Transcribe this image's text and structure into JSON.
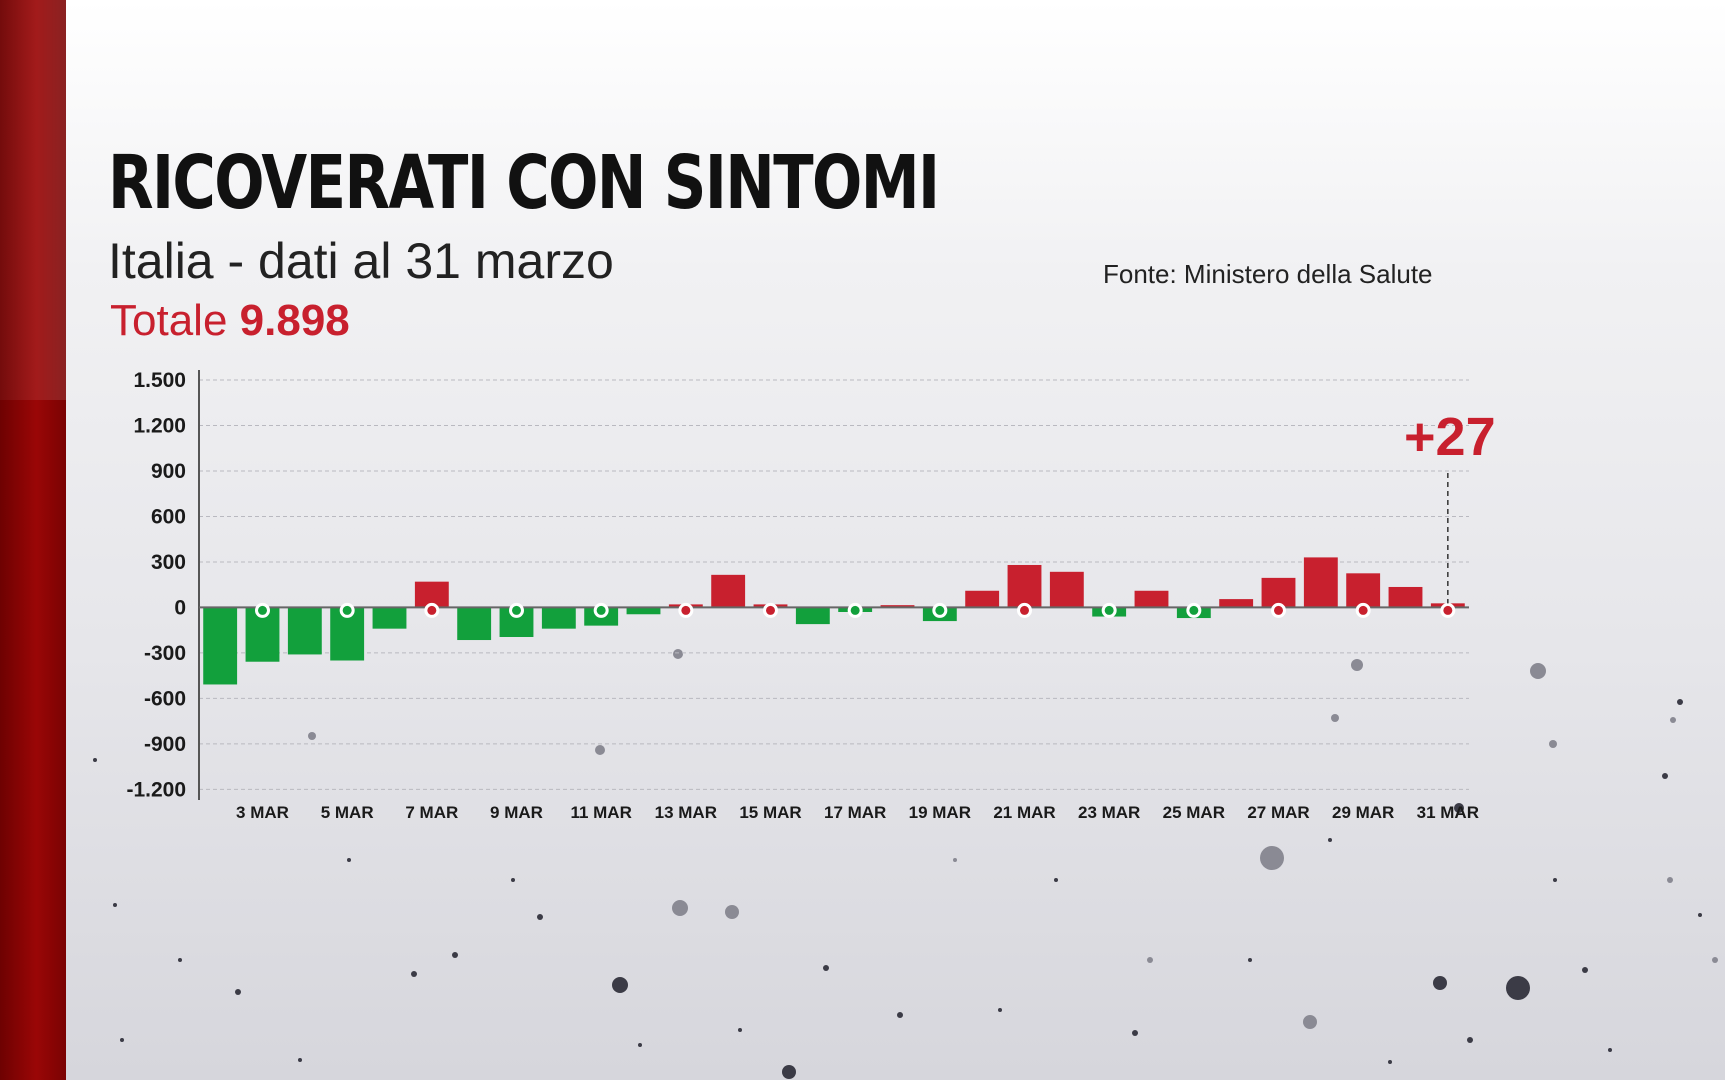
{
  "header": {
    "title": "RICOVERATI CON SINTOMI",
    "subtitle": "Italia - dati al 31 marzo",
    "total_label": "Totale",
    "total_value": "9.898",
    "source": "Fonte: Ministero della Salute"
  },
  "colors": {
    "positive": "#c8202e",
    "negative": "#12a03c",
    "side_bar": "#8b0000"
  },
  "chart_data": {
    "type": "bar",
    "title": "RICOVERATI CON SINTOMI",
    "subtitle": "Italia - dati al 31 marzo",
    "xlabel": "",
    "ylabel": "",
    "ylim": [
      -1270,
      1500
    ],
    "yticks": [
      1500,
      1200,
      900,
      600,
      300,
      0,
      -300,
      -600,
      -900,
      -1200
    ],
    "ytick_labels": [
      "1.500",
      "1.200",
      "900",
      "600",
      "300",
      "0",
      "-300",
      "-600",
      "-900",
      "-1.200"
    ],
    "grid": true,
    "categories": [
      "2 MAR",
      "3 MAR",
      "4 MAR",
      "5 MAR",
      "6 MAR",
      "7 MAR",
      "8 MAR",
      "9 MAR",
      "10 MAR",
      "11 MAR",
      "12 MAR",
      "13 MAR",
      "14 MAR",
      "15 MAR",
      "16 MAR",
      "17 MAR",
      "18 MAR",
      "19 MAR",
      "20 MAR",
      "21 MAR",
      "22 MAR",
      "23 MAR",
      "24 MAR",
      "25 MAR",
      "26 MAR",
      "27 MAR",
      "28 MAR",
      "29 MAR",
      "30 MAR",
      "31 MAR"
    ],
    "xtick_labels": [
      "",
      "3 MAR",
      "",
      "5 MAR",
      "",
      "7 MAR",
      "",
      "9 MAR",
      "",
      "11 MAR",
      "",
      "13 MAR",
      "",
      "15 MAR",
      "",
      "17 MAR",
      "",
      "19 MAR",
      "",
      "21 MAR",
      "",
      "23 MAR",
      "",
      "25 MAR",
      "",
      "27 MAR",
      "",
      "29 MAR",
      "",
      "31 MAR"
    ],
    "values": [
      -508,
      -358,
      -310,
      -350,
      -140,
      170,
      -215,
      -195,
      -140,
      -120,
      -45,
      20,
      215,
      20,
      -110,
      -30,
      15,
      -90,
      110,
      280,
      235,
      -60,
      110,
      -70,
      55,
      195,
      330,
      225,
      135,
      27
    ],
    "markers": [
      "",
      "-",
      "",
      "-",
      "",
      "-",
      "",
      "-",
      "",
      "-",
      "",
      "-",
      "",
      "-",
      "",
      "-",
      "",
      "-",
      "",
      "-",
      "",
      "-",
      "",
      "-",
      "",
      "-",
      "",
      "-",
      "",
      "-"
    ],
    "callout": {
      "category": "31 MAR",
      "label": "+27"
    }
  }
}
